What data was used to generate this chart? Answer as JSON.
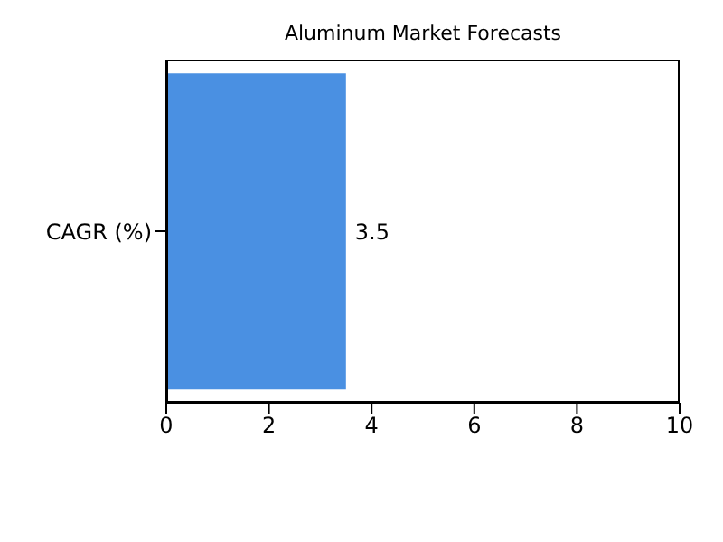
{
  "chart_data": {
    "type": "bar",
    "orientation": "horizontal",
    "title": "Aluminum Market Forecasts",
    "categories": [
      "CAGR (%)"
    ],
    "values": [
      3.5
    ],
    "color": "#4a90e2",
    "xlim": [
      0,
      10
    ],
    "xticks": [
      0,
      2,
      4,
      6,
      8,
      10
    ],
    "data_labels": true
  }
}
